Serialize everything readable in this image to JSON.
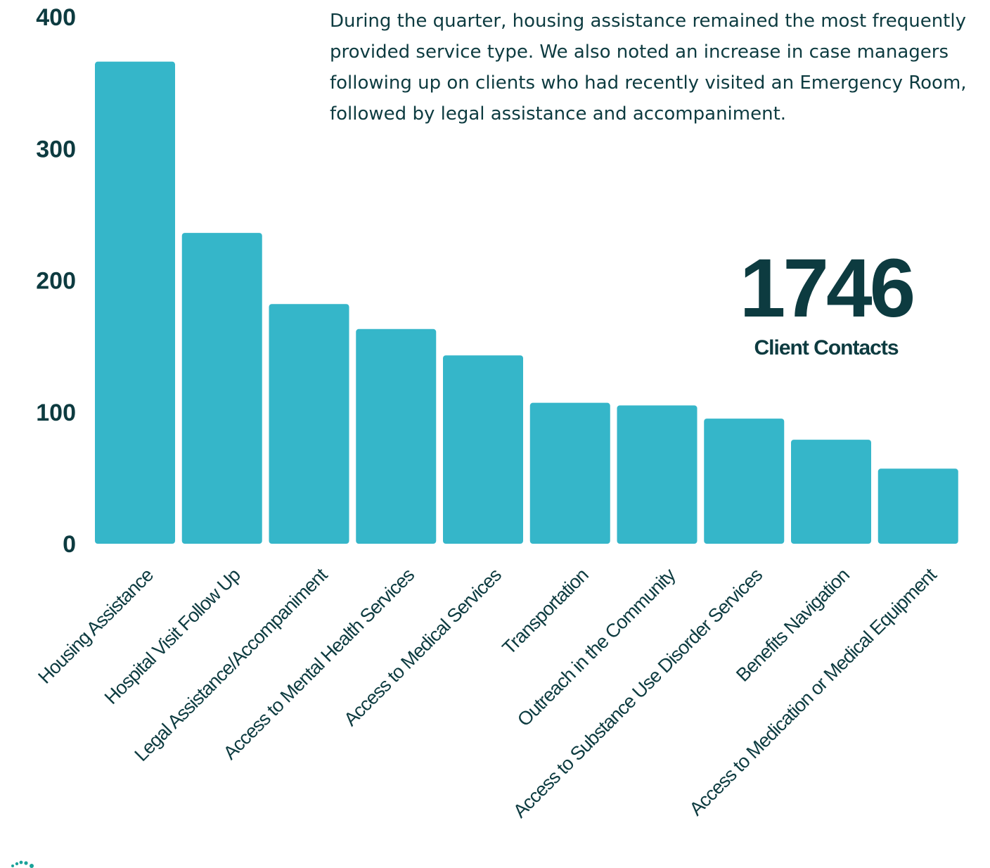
{
  "description": "During the quarter, housing assistance remained the most frequently provided service type. We also noted an increase in case managers following up on clients who had recently visited an Emergency Room, followed by legal assistance and accompaniment.",
  "summary": {
    "value": "1746",
    "label": "Client Contacts"
  },
  "colors": {
    "bar": "#35b6c9",
    "text": "#0d3b40"
  },
  "chart_data": {
    "type": "bar",
    "title": "",
    "xlabel": "",
    "ylabel": "",
    "ylim": [
      0,
      400
    ],
    "yticks": [
      "0",
      "100",
      "200",
      "300",
      "400"
    ],
    "grid": false,
    "categories": [
      "Housing Assistance",
      "Hospital Visit Follow Up",
      "Legal Assistance/Accompaniment",
      "Access to Mental Health Services",
      "Access to Medical Services",
      "Transportation",
      "Outreach in the Community",
      "Access to Substance Use Disorder Services",
      "Benefits Navigation",
      "Access to Medication or Medical Equipment"
    ],
    "values": [
      366,
      236,
      182,
      163,
      143,
      107,
      105,
      95,
      79,
      57
    ]
  }
}
